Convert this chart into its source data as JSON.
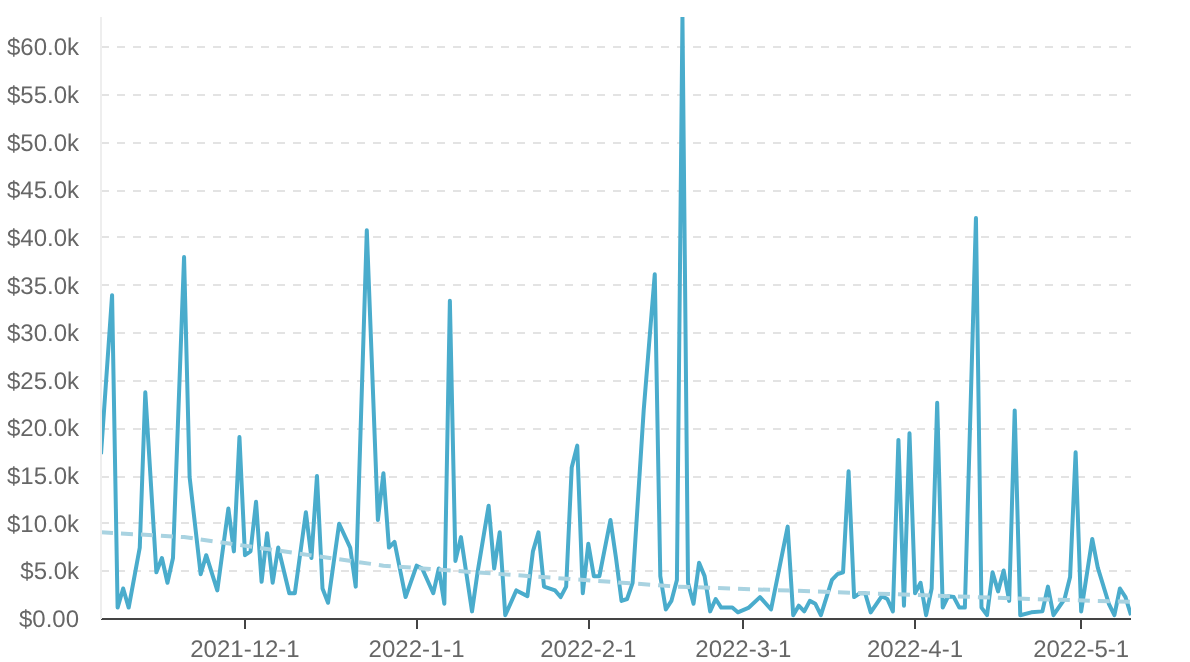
{
  "chart_data": {
    "type": "line",
    "grid": "y",
    "legend": false,
    "marker": "none",
    "xlim": [
      "2021-11-05",
      "2022-05-10"
    ],
    "xticks": [
      {
        "value": "2021-12-01",
        "label": "2021-12-1"
      },
      {
        "value": "2022-01-01",
        "label": "2022-1-1"
      },
      {
        "value": "2022-02-01",
        "label": "2022-2-1"
      },
      {
        "value": "2022-03-01",
        "label": "2022-3-1"
      },
      {
        "value": "2022-04-01",
        "label": "2022-4-1"
      },
      {
        "value": "2022-05-01",
        "label": "2022-5-1"
      }
    ],
    "ylim": [
      0,
      63200
    ],
    "yticks": [
      {
        "value": 0,
        "label": "$0.00"
      },
      {
        "value": 5000,
        "label": "$5.0k"
      },
      {
        "value": 10000,
        "label": "$10.0k"
      },
      {
        "value": 15000,
        "label": "$15.0k"
      },
      {
        "value": 20000,
        "label": "$20.0k"
      },
      {
        "value": 25000,
        "label": "$25.0k"
      },
      {
        "value": 30000,
        "label": "$30.0k"
      },
      {
        "value": 35000,
        "label": "$35.0k"
      },
      {
        "value": 40000,
        "label": "$40.0k"
      },
      {
        "value": 45000,
        "label": "$45.0k"
      },
      {
        "value": 50000,
        "label": "$50.0k"
      },
      {
        "value": 55000,
        "label": "$55.0k"
      },
      {
        "value": 60000,
        "label": "$60.0k"
      }
    ],
    "series": [
      {
        "line_style": "solid",
        "color": "#4aaccc",
        "x": [
          "2021-11-05",
          "2021-11-07",
          "2021-11-08",
          "2021-11-09",
          "2021-11-10",
          "2021-11-12",
          "2021-11-13",
          "2021-11-15",
          "2021-11-16",
          "2021-11-17",
          "2021-11-18",
          "2021-11-20",
          "2021-11-21",
          "2021-11-23",
          "2021-11-24",
          "2021-11-26",
          "2021-11-28",
          "2021-11-29",
          "2021-11-30",
          "2021-12-01",
          "2021-12-02",
          "2021-12-03",
          "2021-12-04",
          "2021-12-05",
          "2021-12-06",
          "2021-12-07",
          "2021-12-09",
          "2021-12-10",
          "2021-12-12",
          "2021-12-13",
          "2021-12-14",
          "2021-12-15",
          "2021-12-16",
          "2021-12-18",
          "2021-12-20",
          "2021-12-21",
          "2021-12-23",
          "2021-12-25",
          "2021-12-26",
          "2021-12-27",
          "2021-12-28",
          "2021-12-30",
          "2022-01-01",
          "2022-01-02",
          "2022-01-04",
          "2022-01-05",
          "2022-01-06",
          "2022-01-07",
          "2022-01-08",
          "2022-01-09",
          "2022-01-11",
          "2022-01-12",
          "2022-01-14",
          "2022-01-15",
          "2022-01-16",
          "2022-01-17",
          "2022-01-19",
          "2022-01-21",
          "2022-01-22",
          "2022-01-23",
          "2022-01-24",
          "2022-01-26",
          "2022-01-27",
          "2022-01-28",
          "2022-01-29",
          "2022-01-30",
          "2022-01-31",
          "2022-02-01",
          "2022-02-02",
          "2022-02-03",
          "2022-02-05",
          "2022-02-06",
          "2022-02-07",
          "2022-02-08",
          "2022-02-09",
          "2022-02-11",
          "2022-02-13",
          "2022-02-14",
          "2022-02-15",
          "2022-02-16",
          "2022-02-17",
          "2022-02-18",
          "2022-02-19",
          "2022-02-20",
          "2022-02-21",
          "2022-02-22",
          "2022-02-23",
          "2022-02-24",
          "2022-02-25",
          "2022-02-27",
          "2022-02-28",
          "2022-03-02",
          "2022-03-04",
          "2022-03-06",
          "2022-03-09",
          "2022-03-10",
          "2022-03-11",
          "2022-03-12",
          "2022-03-13",
          "2022-03-14",
          "2022-03-15",
          "2022-03-17",
          "2022-03-18",
          "2022-03-19",
          "2022-03-20",
          "2022-03-21",
          "2022-03-22",
          "2022-03-23",
          "2022-03-24",
          "2022-03-26",
          "2022-03-27",
          "2022-03-28",
          "2022-03-29",
          "2022-03-30",
          "2022-03-31",
          "2022-04-01",
          "2022-04-02",
          "2022-04-03",
          "2022-04-04",
          "2022-04-05",
          "2022-04-06",
          "2022-04-07",
          "2022-04-08",
          "2022-04-09",
          "2022-04-10",
          "2022-04-12",
          "2022-04-13",
          "2022-04-14",
          "2022-04-15",
          "2022-04-16",
          "2022-04-17",
          "2022-04-18",
          "2022-04-19",
          "2022-04-20",
          "2022-04-22",
          "2022-04-24",
          "2022-04-25",
          "2022-04-26",
          "2022-04-28",
          "2022-04-29",
          "2022-04-30",
          "2022-05-01",
          "2022-05-03",
          "2022-05-04",
          "2022-05-06",
          "2022-05-07",
          "2022-05-08",
          "2022-05-09",
          "2022-05-10"
        ],
        "values": [
          17300,
          34000,
          1200,
          3200,
          1200,
          7500,
          23800,
          4900,
          6400,
          3800,
          6400,
          38000,
          14900,
          4700,
          6700,
          3000,
          11600,
          7100,
          19100,
          6700,
          7100,
          12300,
          3900,
          9000,
          3800,
          7500,
          2700,
          2700,
          11200,
          6400,
          15000,
          3200,
          1700,
          10000,
          7500,
          3400,
          40800,
          10400,
          15300,
          7500,
          8100,
          2300,
          5600,
          5300,
          2700,
          5300,
          1600,
          33400,
          6100,
          8600,
          800,
          4900,
          11900,
          5300,
          9100,
          400,
          3000,
          2400,
          7100,
          9100,
          3400,
          3000,
          2300,
          3400,
          15900,
          18200,
          2700,
          7900,
          4500,
          4500,
          10400,
          6400,
          1900,
          2100,
          3800,
          21900,
          36200,
          4500,
          1000,
          1900,
          4100,
          63200,
          3800,
          1600,
          5900,
          4500,
          800,
          2100,
          1200,
          1200,
          700,
          1200,
          2300,
          1000,
          9700,
          400,
          1400,
          800,
          1900,
          1600,
          400,
          4100,
          4700,
          4900,
          15500,
          2300,
          2700,
          2700,
          700,
          2400,
          2100,
          800,
          18800,
          1400,
          19500,
          2700,
          3800,
          400,
          3200,
          22700,
          1200,
          2400,
          2300,
          1200,
          1200,
          42100,
          1200,
          400,
          4900,
          2900,
          5100,
          1900,
          21900,
          400,
          700,
          800,
          3400,
          400,
          2100,
          4400,
          17500,
          800,
          8400,
          5400,
          1600,
          400,
          3200,
          2300,
          400
        ]
      },
      {
        "line_style": "dashed",
        "color": "#a9d3e1",
        "x": [
          "2021-11-05",
          "2021-11-20",
          "2021-12-26",
          "2022-02-17",
          "2022-04-22",
          "2022-05-10"
        ],
        "values": [
          9100,
          8600,
          5600,
          3400,
          2100,
          1800
        ]
      }
    ]
  }
}
